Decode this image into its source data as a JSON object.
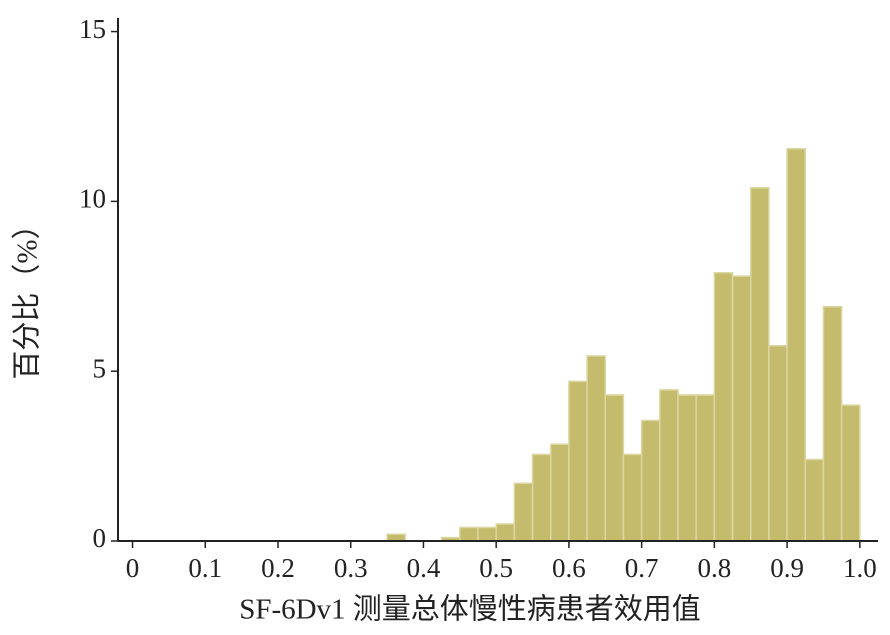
{
  "chart_data": {
    "type": "histogram",
    "x_label": "SF-6Dv1 测量总体慢性病患者效用值",
    "y_label": "百分比（%）",
    "bins": [
      0.35,
      0.375,
      0.4,
      0.425,
      0.45,
      0.475,
      0.5,
      0.525,
      0.55,
      0.575,
      0.6,
      0.625,
      0.65,
      0.675,
      0.7,
      0.725,
      0.75,
      0.775,
      0.8,
      0.825,
      0.85,
      0.875,
      0.9,
      0.925,
      0.95,
      0.975,
      1.0
    ],
    "values": [
      0.2,
      0,
      0,
      0.1,
      0.4,
      0.4,
      0.5,
      1.7,
      2.55,
      2.85,
      4.7,
      5.45,
      4.3,
      2.55,
      3.55,
      4.45,
      4.3,
      4.3,
      7.9,
      7.8,
      10.4,
      5.75,
      11.55,
      2.4,
      6.9,
      4.0
    ],
    "color": "#c4bc6c",
    "xlim": [
      -0.02,
      1.025
    ],
    "ylim": [
      0,
      15.4
    ],
    "xticks": [
      0,
      0.1,
      0.2,
      0.3,
      0.4,
      0.5,
      0.6,
      0.7,
      0.8,
      0.9,
      {
        "value": 1.0,
        "label": "1.0"
      }
    ],
    "yticks": [
      0,
      5,
      10,
      15
    ]
  }
}
